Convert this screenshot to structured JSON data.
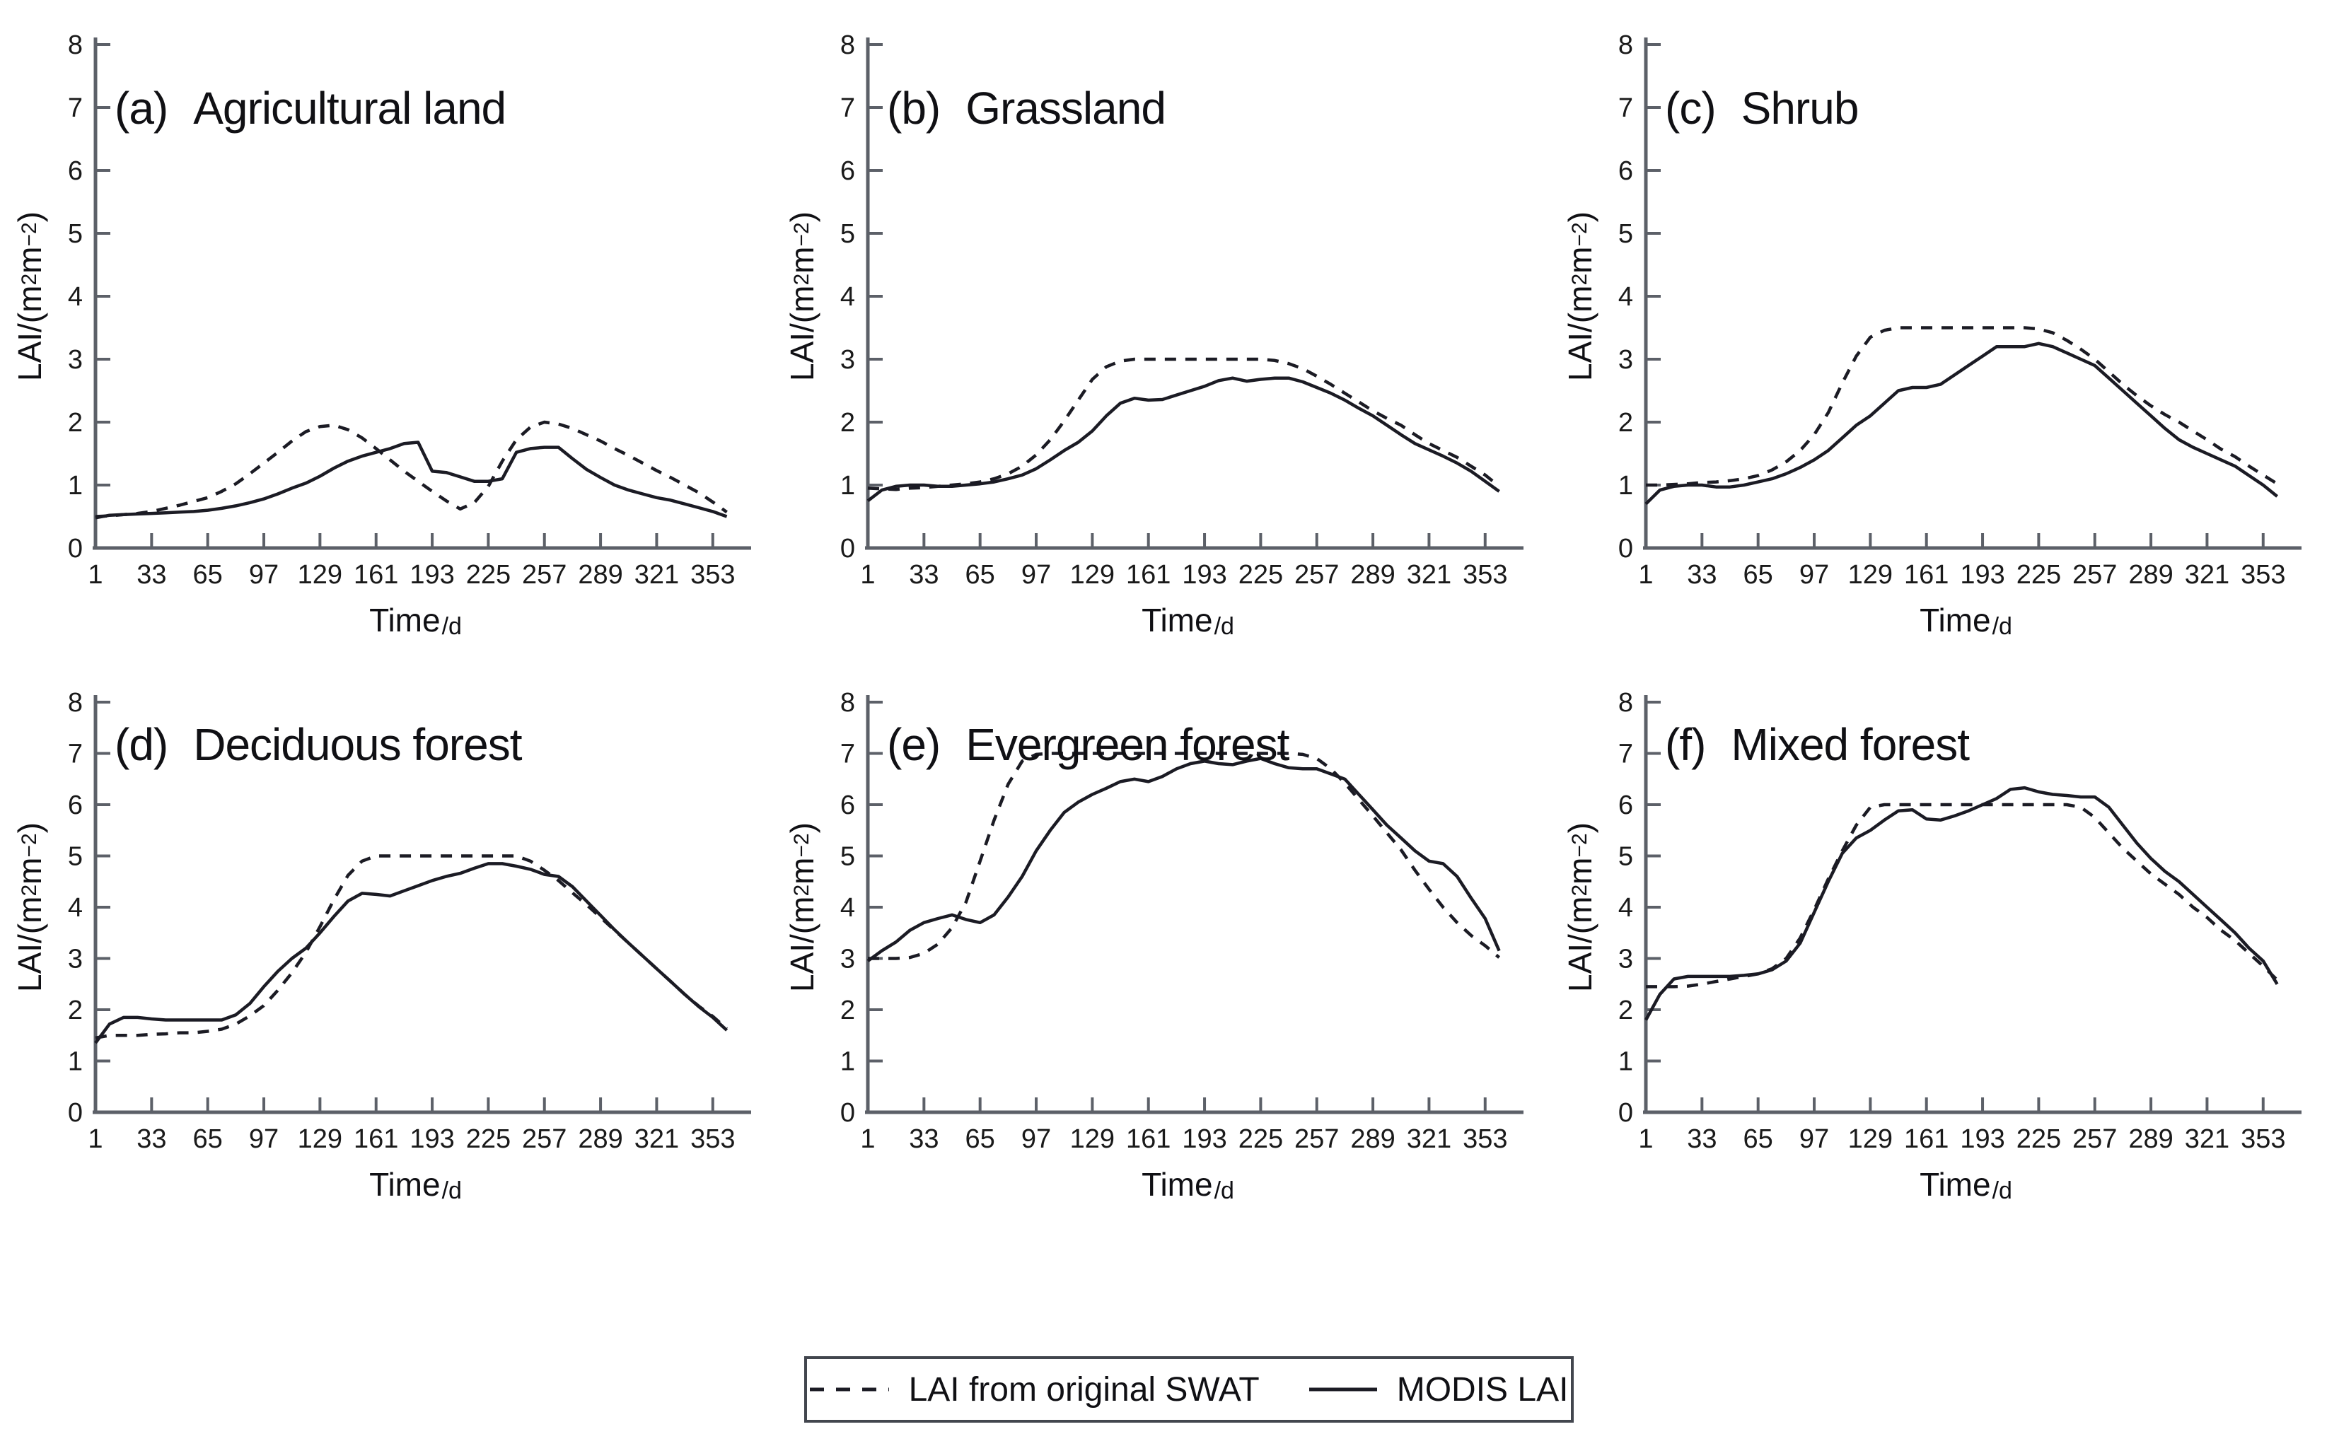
{
  "page": {
    "background": "#ffffff"
  },
  "colors": {
    "curve": "#1b1b24",
    "axis": "#5c6068",
    "text": "#1a1a1a",
    "legend_border": "#42464e"
  },
  "axes": {
    "x_label": "Time",
    "x_label_unit": "/d",
    "y_label": {
      "prefix": "LAI/(m",
      "sup1": "2",
      "mid": "m",
      "sup2": "−2",
      "suffix": ")"
    },
    "x_ticks": [
      1,
      33,
      65,
      97,
      129,
      161,
      193,
      225,
      257,
      289,
      321,
      353
    ],
    "y_ticks": [
      0,
      1,
      2,
      3,
      4,
      5,
      6,
      7,
      8
    ],
    "xlim": [
      1,
      366
    ],
    "ylim": [
      0,
      8
    ]
  },
  "legend": {
    "swat_label": "LAI from original SWAT",
    "modis_label": "MODIS LAI",
    "swat_style": "dashed",
    "modis_style": "solid"
  },
  "chart_data": [
    {
      "type": "line",
      "panel_label": "(a)",
      "title": "Agricultural land",
      "xlabel": "Time/d",
      "ylabel": "LAI/(m2m-2)",
      "xlim": [
        1,
        366
      ],
      "ylim": [
        0,
        8
      ],
      "x_ticks": [
        1,
        33,
        65,
        97,
        129,
        161,
        193,
        225,
        257,
        289,
        321,
        353
      ],
      "y_ticks": [
        0,
        1,
        2,
        3,
        4,
        5,
        6,
        7,
        8
      ],
      "x": [
        1,
        9,
        17,
        25,
        33,
        41,
        49,
        57,
        65,
        73,
        81,
        89,
        97,
        105,
        113,
        121,
        129,
        137,
        145,
        153,
        161,
        169,
        177,
        185,
        193,
        201,
        209,
        217,
        225,
        233,
        241,
        249,
        257,
        265,
        273,
        281,
        289,
        297,
        305,
        313,
        321,
        329,
        337,
        345,
        353,
        361
      ],
      "series": [
        {
          "name": "LAI from original SWAT",
          "style": "dashed",
          "values": [
            0.5,
            0.51,
            0.53,
            0.55,
            0.58,
            0.63,
            0.68,
            0.74,
            0.8,
            0.9,
            1.02,
            1.18,
            1.35,
            1.52,
            1.7,
            1.85,
            1.93,
            1.95,
            1.88,
            1.75,
            1.58,
            1.4,
            1.22,
            1.06,
            0.9,
            0.75,
            0.62,
            0.72,
            0.98,
            1.38,
            1.72,
            1.92,
            2.0,
            1.97,
            1.9,
            1.8,
            1.7,
            1.58,
            1.47,
            1.35,
            1.23,
            1.12,
            1.0,
            0.88,
            0.73,
            0.57
          ]
        },
        {
          "name": "MODIS LAI",
          "style": "solid",
          "values": [
            0.48,
            0.52,
            0.53,
            0.54,
            0.55,
            0.56,
            0.57,
            0.58,
            0.6,
            0.63,
            0.67,
            0.72,
            0.78,
            0.86,
            0.95,
            1.03,
            1.14,
            1.27,
            1.38,
            1.46,
            1.52,
            1.58,
            1.66,
            1.68,
            1.22,
            1.2,
            1.13,
            1.06,
            1.06,
            1.1,
            1.52,
            1.58,
            1.6,
            1.6,
            1.42,
            1.25,
            1.12,
            1.0,
            0.92,
            0.86,
            0.8,
            0.76,
            0.7,
            0.64,
            0.58,
            0.5
          ]
        }
      ]
    },
    {
      "type": "line",
      "panel_label": "(b)",
      "title": "Grassland",
      "xlabel": "Time/d",
      "ylabel": "LAI/(m2m-2)",
      "xlim": [
        1,
        366
      ],
      "ylim": [
        0,
        8
      ],
      "x_ticks": [
        1,
        33,
        65,
        97,
        129,
        161,
        193,
        225,
        257,
        289,
        321,
        353
      ],
      "y_ticks": [
        0,
        1,
        2,
        3,
        4,
        5,
        6,
        7,
        8
      ],
      "x": [
        1,
        9,
        17,
        25,
        33,
        41,
        49,
        57,
        65,
        73,
        81,
        89,
        97,
        105,
        113,
        121,
        129,
        137,
        145,
        153,
        161,
        169,
        177,
        185,
        193,
        201,
        209,
        217,
        225,
        233,
        241,
        249,
        257,
        265,
        273,
        281,
        289,
        297,
        305,
        313,
        321,
        329,
        337,
        345,
        353,
        361
      ],
      "series": [
        {
          "name": "LAI from original SWAT",
          "style": "dashed",
          "values": [
            0.95,
            0.94,
            0.93,
            0.95,
            0.96,
            0.98,
            1.0,
            1.02,
            1.05,
            1.1,
            1.18,
            1.3,
            1.48,
            1.72,
            2.02,
            2.35,
            2.68,
            2.88,
            2.97,
            3.0,
            3.0,
            3.0,
            3.0,
            3.0,
            3.0,
            3.0,
            3.0,
            3.0,
            3.0,
            2.98,
            2.93,
            2.85,
            2.73,
            2.6,
            2.46,
            2.32,
            2.18,
            2.06,
            1.95,
            1.8,
            1.66,
            1.55,
            1.44,
            1.3,
            1.16,
            0.98
          ]
        },
        {
          "name": "MODIS LAI",
          "style": "solid",
          "values": [
            0.75,
            0.92,
            0.98,
            1.0,
            1.0,
            0.98,
            0.98,
            1.0,
            1.02,
            1.05,
            1.1,
            1.16,
            1.26,
            1.4,
            1.55,
            1.68,
            1.86,
            2.1,
            2.3,
            2.38,
            2.35,
            2.36,
            2.43,
            2.5,
            2.57,
            2.66,
            2.7,
            2.65,
            2.68,
            2.7,
            2.7,
            2.64,
            2.55,
            2.46,
            2.35,
            2.22,
            2.1,
            1.95,
            1.8,
            1.66,
            1.56,
            1.46,
            1.35,
            1.22,
            1.06,
            0.9
          ]
        }
      ]
    },
    {
      "type": "line",
      "panel_label": "(c)",
      "title": "Shrub",
      "xlabel": "Time/d",
      "ylabel": "LAI/(m2m-2)",
      "xlim": [
        1,
        366
      ],
      "ylim": [
        0,
        8
      ],
      "x_ticks": [
        1,
        33,
        65,
        97,
        129,
        161,
        193,
        225,
        257,
        289,
        321,
        353
      ],
      "y_ticks": [
        0,
        1,
        2,
        3,
        4,
        5,
        6,
        7,
        8
      ],
      "x": [
        1,
        9,
        17,
        25,
        33,
        41,
        49,
        57,
        65,
        73,
        81,
        89,
        97,
        105,
        113,
        121,
        129,
        137,
        145,
        153,
        161,
        169,
        177,
        185,
        193,
        201,
        209,
        217,
        225,
        233,
        241,
        249,
        257,
        265,
        273,
        281,
        289,
        297,
        305,
        313,
        321,
        329,
        337,
        345,
        353,
        361
      ],
      "series": [
        {
          "name": "LAI from original SWAT",
          "style": "dashed",
          "values": [
            1.0,
            1.0,
            1.01,
            1.02,
            1.04,
            1.05,
            1.07,
            1.1,
            1.15,
            1.24,
            1.37,
            1.55,
            1.8,
            2.15,
            2.62,
            3.05,
            3.35,
            3.46,
            3.5,
            3.5,
            3.5,
            3.5,
            3.5,
            3.5,
            3.5,
            3.5,
            3.5,
            3.5,
            3.48,
            3.42,
            3.3,
            3.16,
            3.0,
            2.8,
            2.6,
            2.42,
            2.26,
            2.12,
            2.0,
            1.86,
            1.72,
            1.57,
            1.45,
            1.3,
            1.16,
            1.02
          ]
        },
        {
          "name": "MODIS LAI",
          "style": "solid",
          "values": [
            0.7,
            0.92,
            0.98,
            1.0,
            1.0,
            0.97,
            0.97,
            1.0,
            1.05,
            1.1,
            1.18,
            1.28,
            1.4,
            1.55,
            1.75,
            1.95,
            2.1,
            2.3,
            2.5,
            2.55,
            2.55,
            2.6,
            2.75,
            2.9,
            3.05,
            3.2,
            3.2,
            3.2,
            3.25,
            3.2,
            3.1,
            3.0,
            2.9,
            2.7,
            2.5,
            2.3,
            2.1,
            1.9,
            1.72,
            1.6,
            1.5,
            1.4,
            1.3,
            1.15,
            1.0,
            0.82
          ]
        }
      ]
    },
    {
      "type": "line",
      "panel_label": "(d)",
      "title": "Deciduous forest",
      "xlabel": "Time/d",
      "ylabel": "LAI/(m2m-2)",
      "xlim": [
        1,
        366
      ],
      "ylim": [
        0,
        8
      ],
      "x_ticks": [
        1,
        33,
        65,
        97,
        129,
        161,
        193,
        225,
        257,
        289,
        321,
        353
      ],
      "y_ticks": [
        0,
        1,
        2,
        3,
        4,
        5,
        6,
        7,
        8
      ],
      "x": [
        1,
        9,
        17,
        25,
        33,
        41,
        49,
        57,
        65,
        73,
        81,
        89,
        97,
        105,
        113,
        121,
        129,
        137,
        145,
        153,
        161,
        169,
        177,
        185,
        193,
        201,
        209,
        217,
        225,
        233,
        241,
        249,
        257,
        265,
        273,
        281,
        289,
        297,
        305,
        313,
        321,
        329,
        337,
        345,
        353,
        361
      ],
      "series": [
        {
          "name": "LAI from original SWAT",
          "style": "dashed",
          "values": [
            1.45,
            1.5,
            1.5,
            1.5,
            1.52,
            1.53,
            1.55,
            1.55,
            1.58,
            1.62,
            1.72,
            1.88,
            2.08,
            2.38,
            2.72,
            3.12,
            3.62,
            4.15,
            4.62,
            4.9,
            5.0,
            5.0,
            5.0,
            5.0,
            5.0,
            5.0,
            5.0,
            5.0,
            5.0,
            5.0,
            5.0,
            4.9,
            4.72,
            4.52,
            4.28,
            4.05,
            3.8,
            3.55,
            3.3,
            3.05,
            2.8,
            2.55,
            2.3,
            2.07,
            1.87,
            1.63
          ]
        },
        {
          "name": "MODIS LAI",
          "style": "solid",
          "values": [
            1.35,
            1.72,
            1.85,
            1.85,
            1.82,
            1.8,
            1.8,
            1.8,
            1.8,
            1.8,
            1.9,
            2.12,
            2.45,
            2.75,
            3.0,
            3.2,
            3.5,
            3.82,
            4.12,
            4.27,
            4.25,
            4.22,
            4.32,
            4.42,
            4.52,
            4.6,
            4.66,
            4.76,
            4.85,
            4.85,
            4.8,
            4.74,
            4.64,
            4.6,
            4.4,
            4.12,
            3.84,
            3.56,
            3.3,
            3.05,
            2.8,
            2.55,
            2.3,
            2.06,
            1.85,
            1.6
          ]
        }
      ]
    },
    {
      "type": "line",
      "panel_label": "(e)",
      "title": "Evergreen forest",
      "xlabel": "Time/d",
      "ylabel": "LAI/(m2m-2)",
      "xlim": [
        1,
        366
      ],
      "ylim": [
        0,
        8
      ],
      "x_ticks": [
        1,
        33,
        65,
        97,
        129,
        161,
        193,
        225,
        257,
        289,
        321,
        353
      ],
      "y_ticks": [
        0,
        1,
        2,
        3,
        4,
        5,
        6,
        7,
        8
      ],
      "x": [
        1,
        9,
        17,
        25,
        33,
        41,
        49,
        57,
        65,
        73,
        81,
        89,
        97,
        105,
        113,
        121,
        129,
        137,
        145,
        153,
        161,
        169,
        177,
        185,
        193,
        201,
        209,
        217,
        225,
        233,
        241,
        249,
        257,
        265,
        273,
        281,
        289,
        297,
        305,
        313,
        321,
        329,
        337,
        345,
        353,
        361
      ],
      "series": [
        {
          "name": "LAI from original SWAT",
          "style": "dashed",
          "values": [
            3.0,
            3.0,
            3.0,
            3.02,
            3.1,
            3.28,
            3.6,
            4.1,
            4.9,
            5.7,
            6.4,
            6.85,
            6.98,
            7.0,
            7.0,
            7.0,
            7.0,
            7.0,
            7.0,
            7.0,
            7.0,
            7.0,
            7.0,
            7.0,
            7.0,
            7.0,
            7.0,
            7.0,
            7.0,
            7.0,
            7.0,
            6.98,
            6.9,
            6.7,
            6.42,
            6.1,
            5.78,
            5.45,
            5.12,
            4.72,
            4.35,
            4.0,
            3.7,
            3.45,
            3.25,
            3.02
          ]
        },
        {
          "name": "MODIS LAI",
          "style": "solid",
          "values": [
            2.95,
            3.15,
            3.32,
            3.55,
            3.7,
            3.78,
            3.85,
            3.76,
            3.7,
            3.85,
            4.2,
            4.6,
            5.1,
            5.5,
            5.85,
            6.05,
            6.2,
            6.32,
            6.45,
            6.5,
            6.45,
            6.55,
            6.7,
            6.8,
            6.85,
            6.8,
            6.78,
            6.85,
            6.9,
            6.8,
            6.72,
            6.7,
            6.7,
            6.6,
            6.5,
            6.2,
            5.9,
            5.6,
            5.35,
            5.1,
            4.9,
            4.85,
            4.6,
            4.18,
            3.78,
            3.15
          ]
        }
      ]
    },
    {
      "type": "line",
      "panel_label": "(f)",
      "title": "Mixed forest",
      "xlabel": "Time/d",
      "ylabel": "LAI/(m2m-2)",
      "xlim": [
        1,
        366
      ],
      "ylim": [
        0,
        8
      ],
      "x_ticks": [
        1,
        33,
        65,
        97,
        129,
        161,
        193,
        225,
        257,
        289,
        321,
        353
      ],
      "y_ticks": [
        0,
        1,
        2,
        3,
        4,
        5,
        6,
        7,
        8
      ],
      "x": [
        1,
        9,
        17,
        25,
        33,
        41,
        49,
        57,
        65,
        73,
        81,
        89,
        97,
        105,
        113,
        121,
        129,
        137,
        145,
        153,
        161,
        169,
        177,
        185,
        193,
        201,
        209,
        217,
        225,
        233,
        241,
        249,
        257,
        265,
        273,
        281,
        289,
        297,
        305,
        313,
        321,
        329,
        337,
        345,
        353,
        361
      ],
      "series": [
        {
          "name": "LAI from original SWAT",
          "style": "dashed",
          "values": [
            2.45,
            2.45,
            2.45,
            2.46,
            2.5,
            2.55,
            2.6,
            2.65,
            2.7,
            2.8,
            3.0,
            3.4,
            3.95,
            4.55,
            5.1,
            5.6,
            5.95,
            6.0,
            6.0,
            6.0,
            6.0,
            6.0,
            6.0,
            6.0,
            6.0,
            6.0,
            6.0,
            6.0,
            6.0,
            6.0,
            6.0,
            5.95,
            5.75,
            5.45,
            5.15,
            4.9,
            4.65,
            4.45,
            4.25,
            4.0,
            3.8,
            3.55,
            3.35,
            3.1,
            2.85,
            2.58
          ]
        },
        {
          "name": "MODIS LAI",
          "style": "solid",
          "values": [
            1.8,
            2.3,
            2.6,
            2.65,
            2.65,
            2.65,
            2.65,
            2.67,
            2.7,
            2.78,
            2.95,
            3.3,
            3.9,
            4.5,
            5.05,
            5.35,
            5.5,
            5.7,
            5.88,
            5.9,
            5.72,
            5.7,
            5.78,
            5.88,
            6.0,
            6.12,
            6.3,
            6.33,
            6.25,
            6.2,
            6.18,
            6.15,
            6.15,
            5.95,
            5.6,
            5.25,
            4.95,
            4.7,
            4.5,
            4.25,
            4.0,
            3.75,
            3.5,
            3.2,
            2.95,
            2.5
          ]
        }
      ]
    }
  ]
}
